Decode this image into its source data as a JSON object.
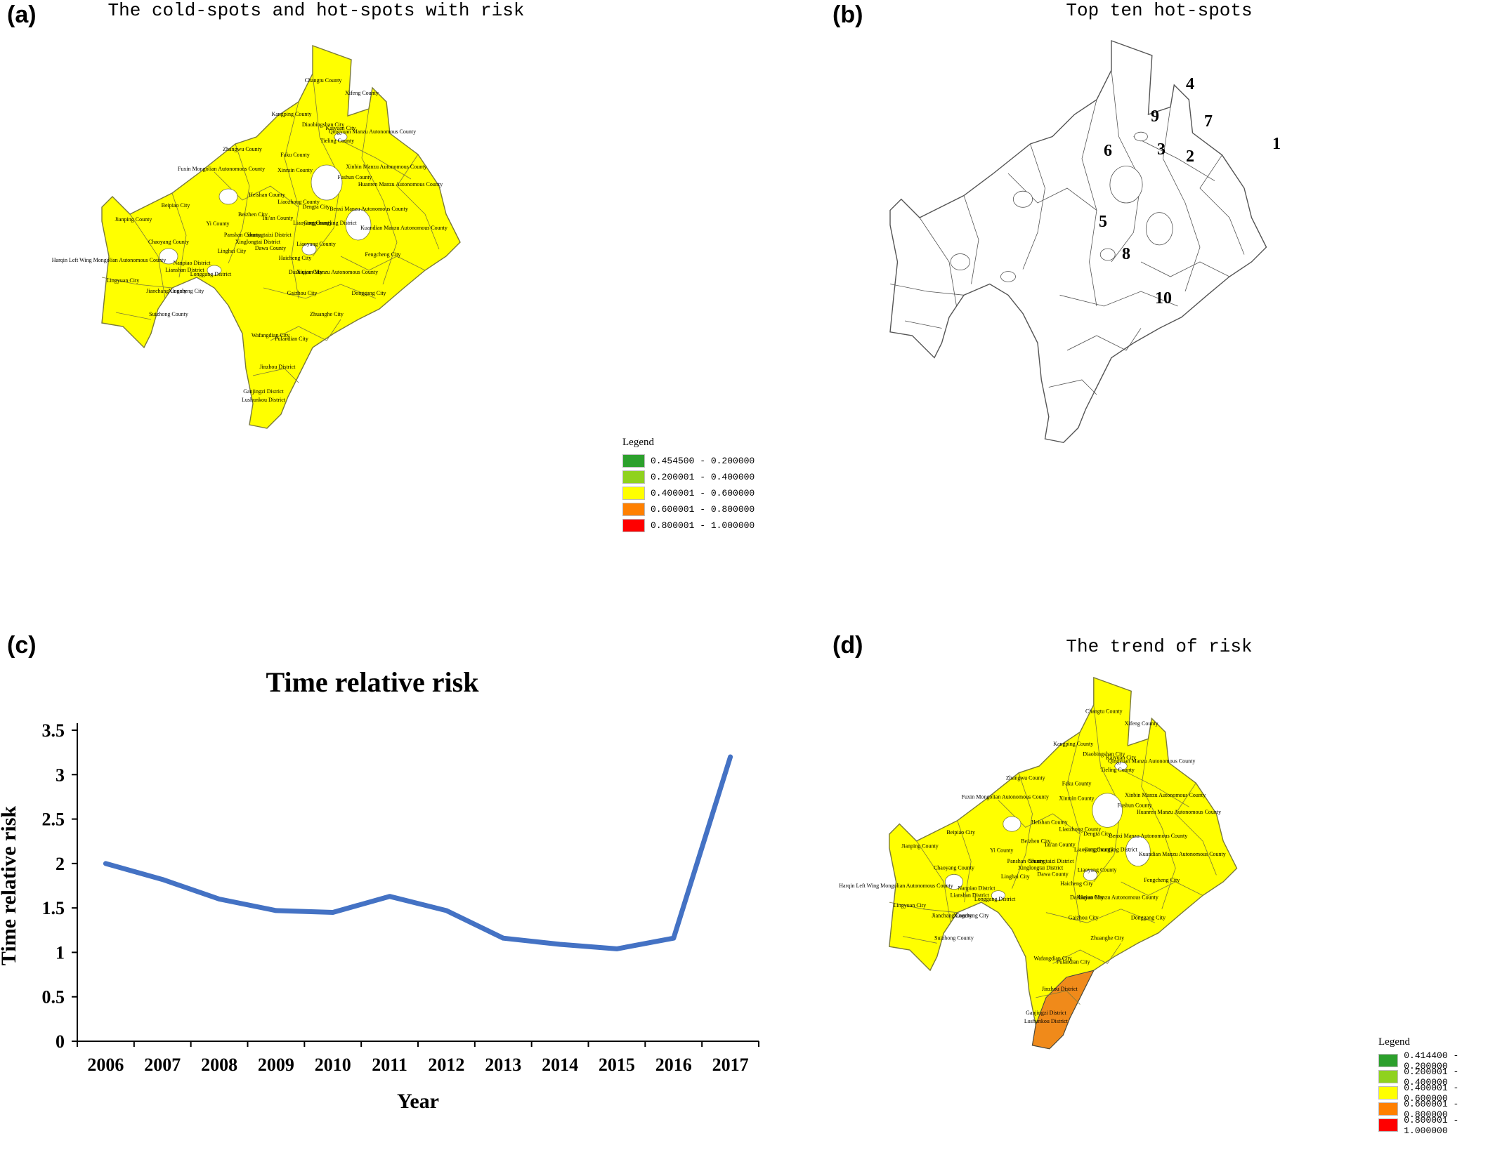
{
  "panels": {
    "a": {
      "letter": "(a)",
      "title": "The cold-spots and hot-spots with risk"
    },
    "b": {
      "letter": "(b)",
      "title": "Top ten hot-spots"
    },
    "c": {
      "letter": "(c)"
    },
    "d": {
      "letter": "(d)",
      "title": "The trend of risk"
    }
  },
  "legend_a": {
    "title": "Legend",
    "items": [
      {
        "label": "0.454500 - 0.200000",
        "color": "#2ca02c"
      },
      {
        "label": "0.200001 - 0.400000",
        "color": "#8fd21e"
      },
      {
        "label": "0.400001 - 0.600000",
        "color": "#ffff00"
      },
      {
        "label": "0.600001 - 0.800000",
        "color": "#ff8000"
      },
      {
        "label": "0.800001 - 1.000000",
        "color": "#ff0000"
      }
    ]
  },
  "legend_d": {
    "title": "Legend",
    "items": [
      {
        "label": "0.414400 - 0.200000",
        "color": "#2ca02c"
      },
      {
        "label": "0.200001 - 0.400000",
        "color": "#8fd21e"
      },
      {
        "label": "0.400001 - 0.600000",
        "color": "#ffff00"
      },
      {
        "label": "0.600001 - 0.800000",
        "color": "#ff8000"
      },
      {
        "label": "0.800001 - 1.000000",
        "color": "#ff0000"
      }
    ]
  },
  "map_labels": [
    "Changtu County",
    "Xifeng County",
    "Kangping County",
    "Diaobingshan City",
    "Kaiyuan City",
    "Qingyuan Manzu Autonomous County",
    "Tieling County",
    "Zhangwu County",
    "Faku County",
    "Fuxin Mongolian Autonomous County",
    "Xinmin County",
    "Xinbin Manzu Autonomous County",
    "Fushun County",
    "Huanren Manzu Autonomous County",
    "Heishan County",
    "Beipiao City",
    "Liaozhong County",
    "Dengta City",
    "Benxi Manzu Autonomous County",
    "Jianping County",
    "Beizhen City",
    "Tai'an County",
    "Yi County",
    "Liaoyang County",
    "Gongchangling District",
    "Kuandian Manzu Autonomous County",
    "Panshan County",
    "Shuangtaizi District",
    "Xinglongtai District",
    "Chaoyang County",
    "Linghai City",
    "Dawa County",
    "Liaoyang County",
    "Harqin Left Wing Mongolian Autonomous County",
    "Nanpiao District",
    "Haicheng City",
    "Fengcheng City",
    "Lianshan District",
    "Longgang District",
    "Dashiqiao City",
    "Xiuyan Manzu Autonomous County",
    "Lingyuan City",
    "Jianchang County",
    "Xingcheng City",
    "Gaizhou City",
    "Donggang City",
    "Suizhong County",
    "Zhuanghe City",
    "Wafangdian City",
    "Pulandian City",
    "Jinzhou District",
    "Ganjingzi District",
    "Lushunkou District"
  ],
  "hotspots": [
    "1",
    "2",
    "3",
    "4",
    "5",
    "6",
    "7",
    "8",
    "9",
    "10"
  ],
  "chart_data": {
    "type": "line",
    "title": "Time relative risk",
    "xlabel": "Year",
    "ylabel": "Time relative risk",
    "ylim": [
      0,
      3.5
    ],
    "yticks": [
      "0",
      "0.5",
      "1",
      "1.5",
      "2",
      "2.5",
      "3",
      "3.5"
    ],
    "categories": [
      "2006",
      "2007",
      "2008",
      "2009",
      "2010",
      "2011",
      "2012",
      "2013",
      "2014",
      "2015",
      "2016",
      "2017"
    ],
    "series": [
      {
        "values": [
          2.0,
          1.82,
          1.6,
          1.47,
          1.45,
          1.63,
          1.47,
          1.16,
          1.09,
          1.04,
          1.16,
          3.2
        ],
        "color": "#4472c4"
      }
    ],
    "grid": false,
    "legend": "none"
  }
}
